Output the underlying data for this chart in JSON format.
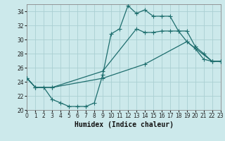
{
  "xlabel": "Humidex (Indice chaleur)",
  "xlim": [
    0,
    23
  ],
  "ylim": [
    20,
    35
  ],
  "yticks": [
    20,
    22,
    24,
    26,
    28,
    30,
    32,
    34
  ],
  "xticks": [
    0,
    1,
    2,
    3,
    4,
    5,
    6,
    7,
    8,
    9,
    10,
    11,
    12,
    13,
    14,
    15,
    16,
    17,
    18,
    19,
    20,
    21,
    22,
    23
  ],
  "background_color": "#cce9eb",
  "grid_color": "#aacfd2",
  "line_color": "#1e6e6e",
  "line1_x": [
    0,
    1,
    2,
    3,
    4,
    5,
    6,
    7,
    8,
    9,
    10,
    11,
    12,
    13,
    14,
    15,
    16,
    17,
    18,
    19,
    20,
    21,
    22,
    23
  ],
  "line1_y": [
    24.5,
    23.2,
    23.2,
    21.5,
    21.0,
    20.5,
    20.5,
    20.5,
    21.0,
    25.0,
    30.8,
    31.5,
    34.8,
    33.7,
    34.2,
    33.3,
    33.3,
    33.3,
    31.2,
    29.7,
    28.7,
    27.2,
    26.9,
    26.9
  ],
  "line2_x": [
    0,
    1,
    3,
    9,
    13,
    14,
    15,
    16,
    17,
    18,
    19,
    20,
    21,
    22,
    23
  ],
  "line2_y": [
    24.5,
    23.2,
    23.2,
    25.5,
    31.5,
    31.0,
    31.0,
    31.2,
    31.2,
    31.2,
    31.2,
    29.0,
    28.0,
    26.9,
    26.9
  ],
  "line3_x": [
    0,
    1,
    3,
    9,
    14,
    19,
    22,
    23
  ],
  "line3_y": [
    24.5,
    23.2,
    23.2,
    24.5,
    26.5,
    29.7,
    26.9,
    26.9
  ]
}
